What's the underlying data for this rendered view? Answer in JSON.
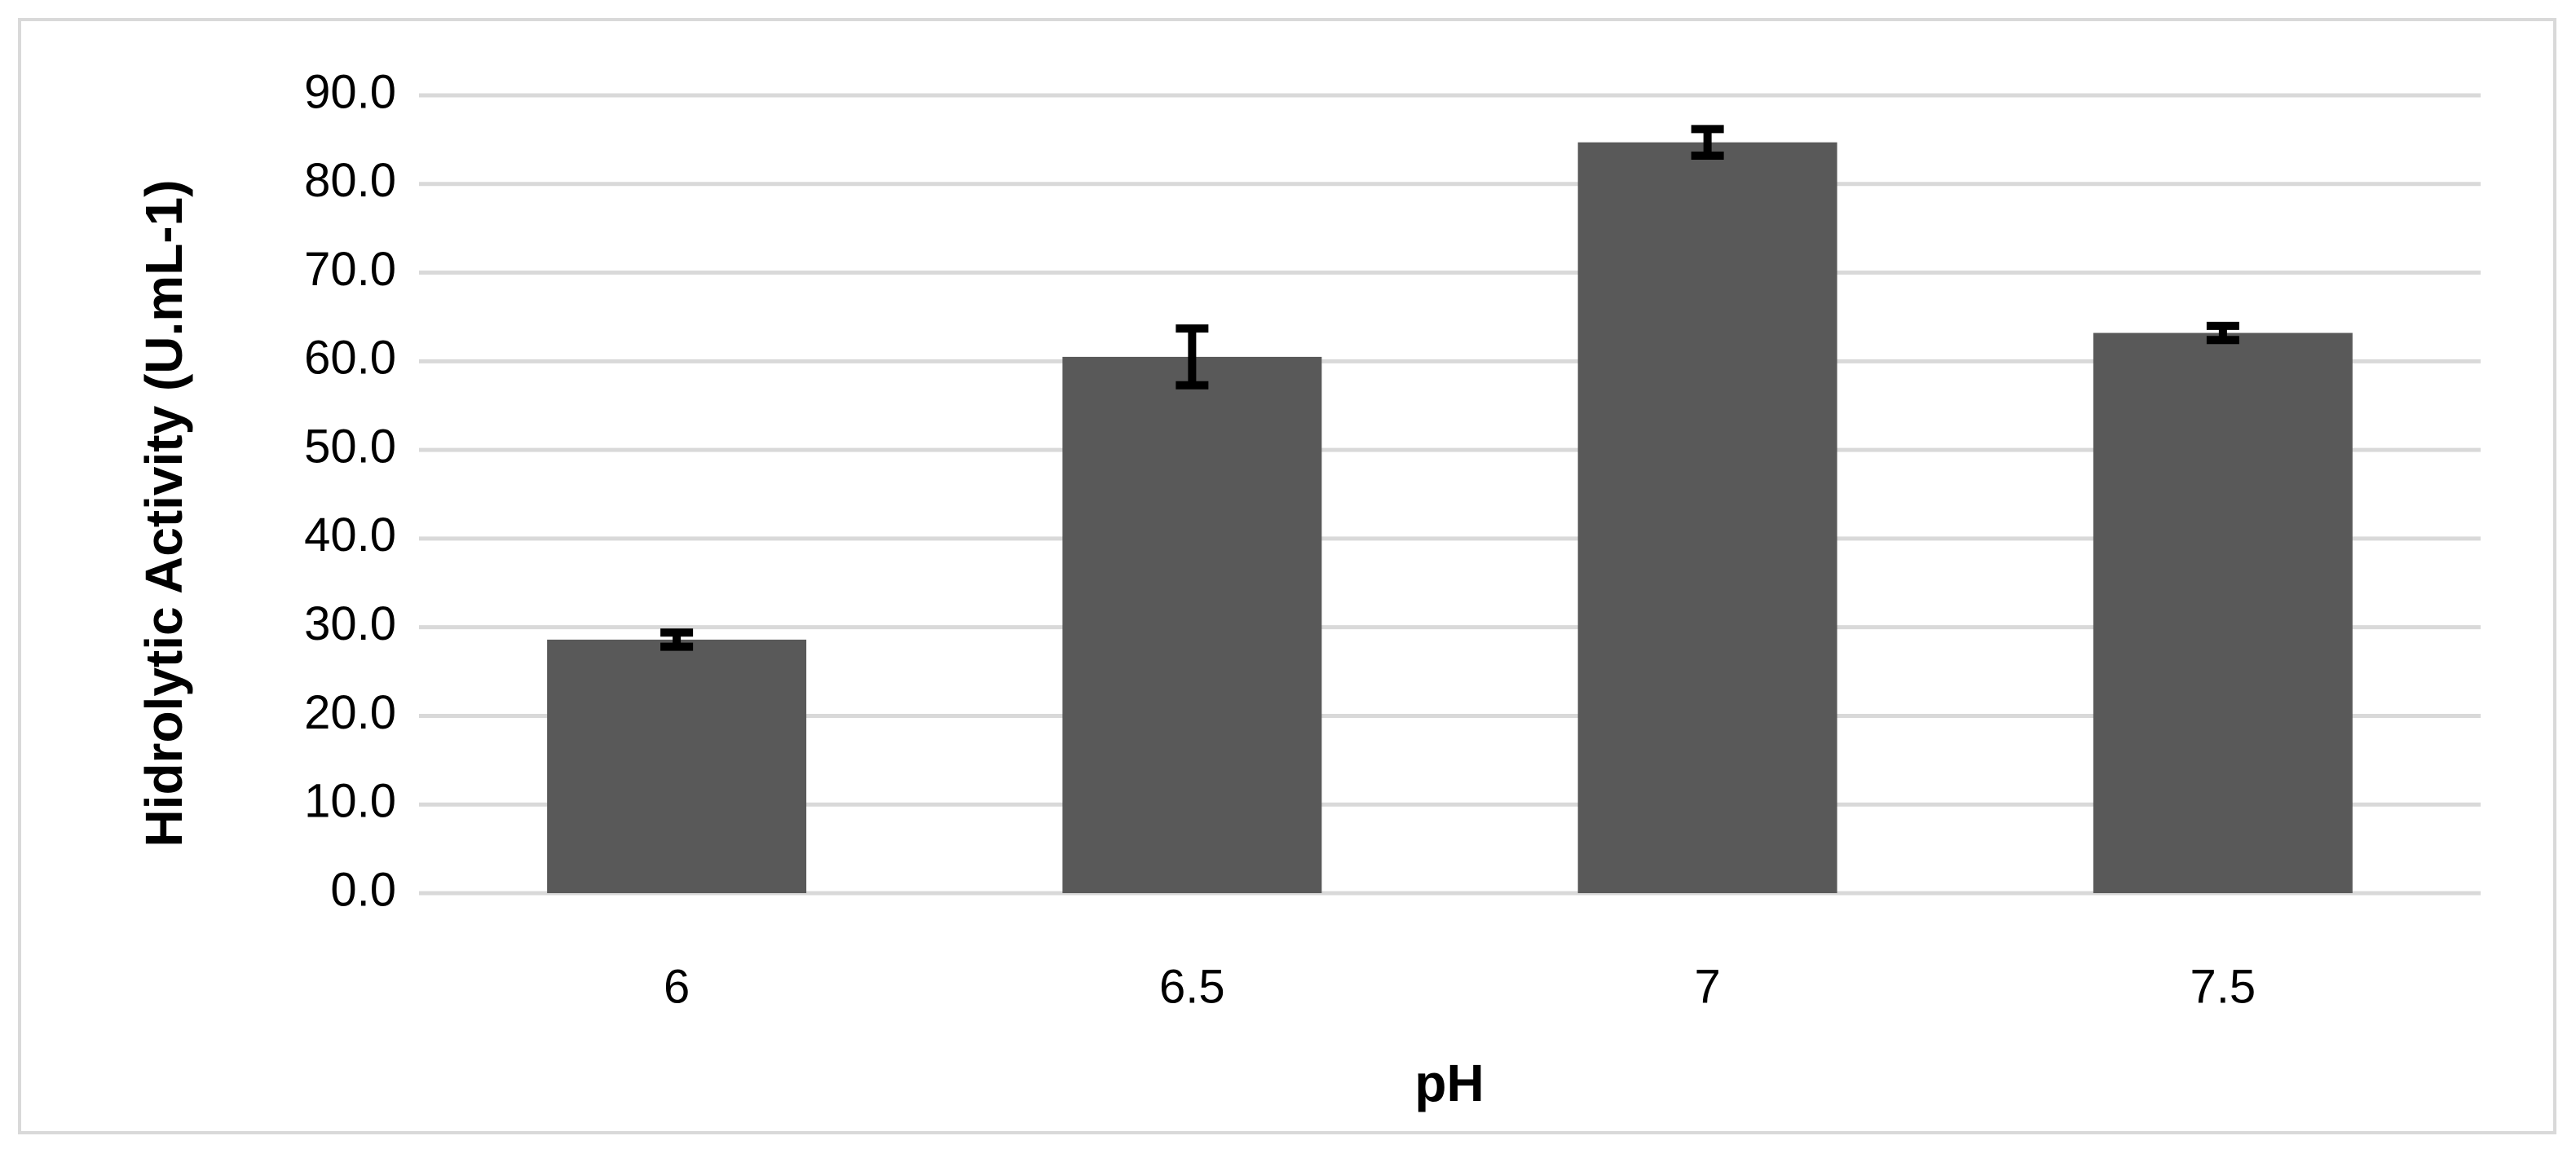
{
  "chart_data": {
    "type": "bar",
    "x_label": "pH",
    "y_label": "Hidrolytic Activity (U.mL-1)",
    "categories": [
      "6",
      "6.5",
      "7",
      "7.5"
    ],
    "values": [
      28.6,
      60.5,
      84.7,
      63.2
    ],
    "errors": [
      0.8,
      3.2,
      1.5,
      0.8
    ],
    "color": "#595959",
    "error_color": "#000000",
    "ylim": [
      0,
      90
    ],
    "yticks": [
      {
        "value": 0,
        "label": "0.0"
      },
      {
        "value": 10,
        "label": "10.0"
      },
      {
        "value": 20,
        "label": "20.0"
      },
      {
        "value": 30,
        "label": "30.0"
      },
      {
        "value": 40,
        "label": "40.0"
      },
      {
        "value": 50,
        "label": "50.0"
      },
      {
        "value": 60,
        "label": "60.0"
      },
      {
        "value": 70,
        "label": "70.0"
      },
      {
        "value": 80,
        "label": "80.0"
      },
      {
        "value": 90,
        "label": "90.0"
      }
    ],
    "grid": true
  }
}
